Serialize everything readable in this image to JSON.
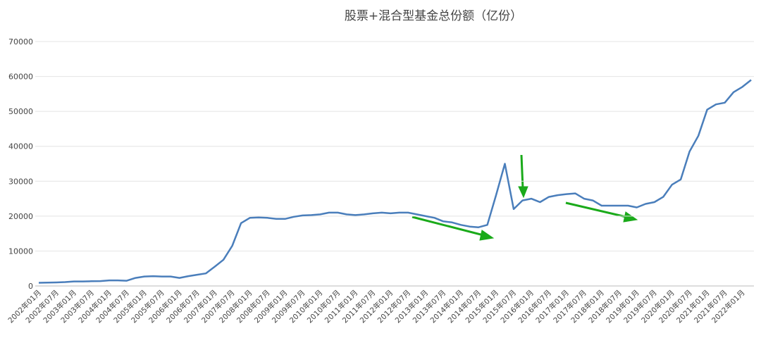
{
  "chart_data": {
    "type": "line",
    "title": "股票+混合型基金总份额（亿份）",
    "categories": [
      "2002年01月",
      null,
      "2002年07月",
      null,
      "2003年01月",
      null,
      "2003年07月",
      null,
      "2004年01月",
      null,
      "2004年07月",
      null,
      "2005年01月",
      null,
      "2005年07月",
      null,
      "2006年01月",
      null,
      "2006年07月",
      null,
      "2007年01月",
      null,
      "2007年07月",
      null,
      "2008年01月",
      null,
      "2008年07月",
      null,
      "2009年01月",
      null,
      "2009年07月",
      null,
      "2010年01月",
      null,
      "2010年07月",
      null,
      "2011年01月",
      null,
      "2011年07月",
      null,
      "2012年01月",
      null,
      "2012年07月",
      null,
      "2013年01月",
      null,
      "2013年07月",
      null,
      "2014年01月",
      null,
      "2014年07月",
      null,
      "2015年01月",
      null,
      "2015年07月",
      null,
      "2016年01月",
      null,
      "2016年07月",
      null,
      "2017年01月",
      null,
      "2017年07月",
      null,
      "2018年01月",
      null,
      "2018年07月",
      null,
      "2019年01月",
      null,
      "2019年07月",
      null,
      "2020年01月",
      null,
      "2020年07月",
      null,
      "2021年01月",
      null,
      "2021年07月",
      null,
      "2022年01月",
      null
    ],
    "series": [
      {
        "name": "股票+混合型基金总份额",
        "color": "#4a7ebb",
        "values": [
          900,
          950,
          1000,
          1100,
          1300,
          1300,
          1350,
          1400,
          1600,
          1600,
          1500,
          2300,
          2700,
          2800,
          2700,
          2700,
          2300,
          2800,
          3200,
          3600,
          5500,
          7500,
          11500,
          18000,
          19500,
          19600,
          19500,
          19200,
          19200,
          19800,
          20200,
          20300,
          20500,
          21000,
          21000,
          20500,
          20300,
          20500,
          20800,
          21000,
          20800,
          21000,
          21000,
          20500,
          20000,
          19500,
          18500,
          18200,
          17500,
          17000,
          16800,
          17500,
          26000,
          35000,
          22000,
          24500,
          25000,
          24000,
          25500,
          26000,
          26300,
          26500,
          25000,
          24500,
          23000,
          23000,
          23000,
          23000,
          22500,
          23500,
          24000,
          25500,
          29000,
          30500,
          38500,
          43000,
          50500,
          52000,
          52500,
          55500,
          57000,
          59000
        ]
      }
    ],
    "ylim": [
      0,
      70000
    ],
    "yticks": [
      0,
      10000,
      20000,
      30000,
      40000,
      50000,
      60000,
      70000
    ],
    "grid": true
  }
}
